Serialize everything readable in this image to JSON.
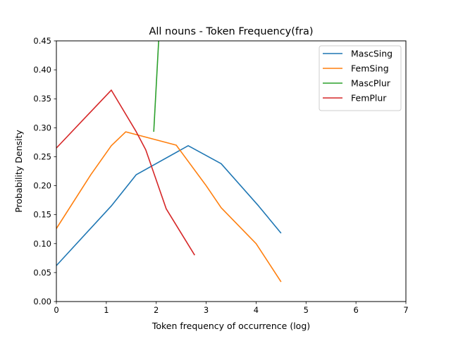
{
  "chart_data": {
    "type": "line",
    "title": "All nouns - Token Frequency(fra)",
    "xlabel": "Token frequency of occurrence (log)",
    "ylabel": "Probability Density",
    "xlim": [
      0,
      7
    ],
    "ylim": [
      0,
      0.45
    ],
    "x_ticks": [
      0,
      1,
      2,
      3,
      4,
      5,
      6,
      7
    ],
    "y_ticks": [
      "0.00",
      "0.05",
      "0.10",
      "0.15",
      "0.20",
      "0.25",
      "0.30",
      "0.35",
      "0.40",
      "0.45"
    ],
    "grid": false,
    "legend_position": "top-right",
    "series": [
      {
        "name": "MascSing",
        "color": "#1f77b4",
        "points": [
          [
            0,
            0.062
          ],
          [
            1.1,
            0.165
          ],
          [
            1.6,
            0.219
          ],
          [
            2.64,
            0.269
          ],
          [
            3.3,
            0.238
          ],
          [
            4.05,
            0.165
          ],
          [
            4.5,
            0.118
          ]
        ]
      },
      {
        "name": "FemSing",
        "color": "#ff7f0e",
        "points": [
          [
            0,
            0.126
          ],
          [
            0.69,
            0.219
          ],
          [
            1.1,
            0.269
          ],
          [
            1.39,
            0.293
          ],
          [
            2.4,
            0.27
          ],
          [
            3.0,
            0.2
          ],
          [
            3.3,
            0.162
          ],
          [
            4.0,
            0.1
          ],
          [
            4.5,
            0.034
          ]
        ]
      },
      {
        "name": "MascPlur",
        "color": "#2ca02c",
        "points": [
          [
            1.95,
            0.293
          ],
          [
            2.08,
            0.5
          ]
        ]
      },
      {
        "name": "FemPlur",
        "color": "#d62728",
        "points": [
          [
            0,
            0.265
          ],
          [
            1.1,
            0.365
          ],
          [
            1.6,
            0.293
          ],
          [
            1.79,
            0.262
          ],
          [
            2.2,
            0.16
          ],
          [
            2.77,
            0.08
          ]
        ]
      }
    ]
  }
}
